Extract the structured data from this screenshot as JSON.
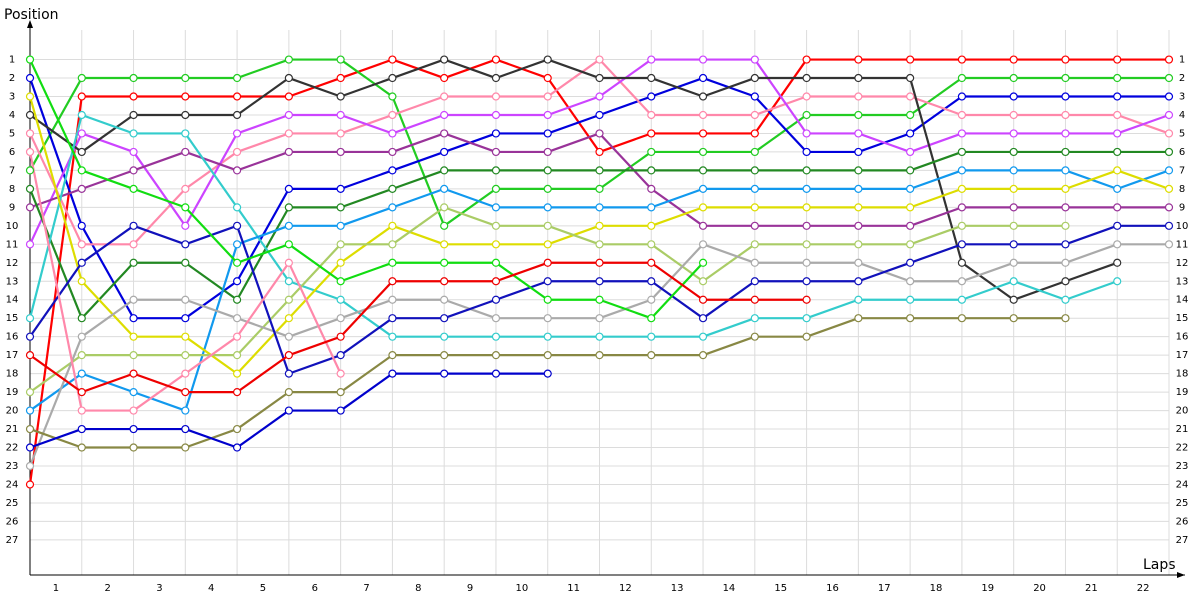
{
  "chart_data": {
    "type": "line",
    "y_label": "Position",
    "x_label": "Laps",
    "x": [
      0,
      1,
      2,
      3,
      4,
      5,
      6,
      7,
      8,
      9,
      10,
      11,
      12,
      13,
      14,
      15,
      16,
      17,
      18,
      19,
      20,
      21,
      22
    ],
    "xlim": [
      0,
      22
    ],
    "xticks": [
      {
        "value": 0.5,
        "label": "1"
      },
      {
        "value": 1.5,
        "label": "2"
      },
      {
        "value": 2.5,
        "label": "3"
      },
      {
        "value": 3.5,
        "label": "4"
      },
      {
        "value": 4.5,
        "label": "5"
      },
      {
        "value": 5.5,
        "label": "6"
      },
      {
        "value": 6.5,
        "label": "7"
      },
      {
        "value": 7.5,
        "label": "8"
      },
      {
        "value": 8.5,
        "label": "9"
      },
      {
        "value": 9.5,
        "label": "10"
      },
      {
        "value": 10.5,
        "label": "11"
      },
      {
        "value": 11.5,
        "label": "12"
      },
      {
        "value": 12.5,
        "label": "13"
      },
      {
        "value": 13.5,
        "label": "14"
      },
      {
        "value": 14.5,
        "label": "15"
      },
      {
        "value": 15.5,
        "label": "16"
      },
      {
        "value": 16.5,
        "label": "17"
      },
      {
        "value": 17.5,
        "label": "18"
      },
      {
        "value": 18.5,
        "label": "19"
      },
      {
        "value": 19.5,
        "label": "20"
      },
      {
        "value": 20.5,
        "label": "21"
      },
      {
        "value": 21.5,
        "label": "22"
      }
    ],
    "ylim": [
      28.9,
      -0.6
    ],
    "yticks": [
      1,
      2,
      3,
      4,
      5,
      6,
      7,
      8,
      9,
      10,
      11,
      12,
      13,
      14,
      15,
      16,
      17,
      18,
      19,
      20,
      21,
      22,
      23,
      24,
      25,
      26,
      27
    ],
    "grid": true,
    "series": [
      {
        "color": "#ff0000",
        "values": [
          24,
          3,
          3,
          3,
          3,
          3,
          2,
          1,
          2,
          1,
          2,
          6,
          5,
          5,
          5,
          1,
          1,
          1,
          1,
          1,
          1,
          1,
          1
        ]
      },
      {
        "color": "#22cc22",
        "values": [
          7,
          2,
          2,
          2,
          2,
          1,
          1,
          3,
          10,
          8,
          8,
          8,
          6,
          6,
          6,
          4,
          4,
          4,
          2,
          2,
          2,
          2,
          2
        ]
      },
      {
        "color": "#0000dd",
        "values": [
          2,
          10,
          15,
          15,
          13,
          8,
          8,
          7,
          6,
          5,
          5,
          4,
          3,
          2,
          3,
          6,
          6,
          5,
          3,
          3,
          3,
          3,
          3
        ]
      },
      {
        "color": "#ff88aa",
        "values": [
          5,
          11,
          11,
          8,
          6,
          5,
          5,
          4,
          3,
          3,
          3,
          1,
          4,
          4,
          4,
          3,
          3,
          3,
          4,
          4,
          4,
          4,
          5
        ]
      },
      {
        "color": "#cc44ff",
        "values": [
          11,
          5,
          6,
          10,
          5,
          4,
          4,
          5,
          4,
          4,
          4,
          3,
          1,
          1,
          1,
          5,
          5,
          6,
          5,
          5,
          5,
          5,
          4
        ]
      },
      {
        "color": "#333333",
        "values": [
          4,
          6,
          4,
          4,
          4,
          2,
          3,
          2,
          1,
          2,
          1,
          2,
          2,
          3,
          2,
          2,
          2,
          2,
          12,
          14,
          13,
          12,
          null
        ]
      },
      {
        "color": "#993399",
        "values": [
          9,
          8,
          7,
          6,
          7,
          6,
          6,
          6,
          5,
          6,
          6,
          5,
          8,
          10,
          10,
          10,
          10,
          10,
          9,
          9,
          9,
          9,
          9
        ]
      },
      {
        "color": "#228822",
        "values": [
          8,
          15,
          12,
          12,
          14,
          9,
          9,
          8,
          7,
          7,
          7,
          7,
          7,
          7,
          7,
          7,
          7,
          7,
          6,
          6,
          6,
          6,
          6
        ]
      },
      {
        "color": "#33cccc",
        "values": [
          15,
          4,
          5,
          5,
          9,
          13,
          14,
          16,
          16,
          16,
          16,
          16,
          16,
          16,
          15,
          15,
          14,
          14,
          14,
          13,
          14,
          13,
          null
        ]
      },
      {
        "color": "#1199ee",
        "values": [
          20,
          18,
          19,
          20,
          11,
          10,
          10,
          9,
          8,
          9,
          9,
          9,
          9,
          8,
          8,
          8,
          8,
          8,
          7,
          7,
          7,
          8,
          7
        ]
      },
      {
        "color": "#dddd00",
        "values": [
          3,
          13,
          16,
          16,
          18,
          15,
          12,
          10,
          11,
          11,
          11,
          10,
          10,
          9,
          9,
          9,
          9,
          9,
          8,
          8,
          8,
          7,
          8
        ]
      },
      {
        "color": "#aacc66",
        "values": [
          19,
          17,
          17,
          17,
          17,
          14,
          11,
          11,
          9,
          10,
          10,
          11,
          11,
          13,
          11,
          11,
          11,
          11,
          10,
          10,
          10,
          null,
          null
        ]
      },
      {
        "color": "#aaaaaa",
        "values": [
          23,
          16,
          14,
          14,
          15,
          16,
          15,
          14,
          14,
          15,
          15,
          15,
          14,
          11,
          12,
          12,
          12,
          13,
          13,
          12,
          12,
          11,
          11
        ]
      },
      {
        "color": "#888844",
        "values": [
          21,
          22,
          22,
          22,
          21,
          19,
          19,
          17,
          17,
          17,
          17,
          17,
          17,
          17,
          16,
          16,
          15,
          15,
          15,
          15,
          15,
          null,
          null
        ]
      },
      {
        "color": "#1111bb",
        "values": [
          16,
          12,
          10,
          11,
          10,
          18,
          17,
          15,
          15,
          14,
          13,
          13,
          13,
          15,
          13,
          13,
          13,
          12,
          11,
          11,
          11,
          10,
          10
        ]
      },
      {
        "color": "#11dd11",
        "values": [
          1,
          7,
          8,
          9,
          12,
          11,
          13,
          12,
          12,
          12,
          14,
          14,
          15,
          12,
          null,
          null,
          null,
          null,
          null,
          null,
          null,
          null,
          null
        ]
      },
      {
        "color": "#ff88aa",
        "values": [
          6,
          20,
          20,
          18,
          16,
          12,
          18,
          null,
          null,
          null,
          null,
          null,
          null,
          null,
          null,
          null,
          null,
          null,
          null,
          null,
          null,
          null,
          null
        ]
      },
      {
        "color": "#ee0000",
        "values": [
          17,
          19,
          18,
          19,
          19,
          17,
          16,
          13,
          13,
          13,
          12,
          12,
          12,
          14,
          14,
          14,
          null,
          null,
          null,
          null,
          null,
          null,
          null
        ]
      },
      {
        "color": "#0000cc",
        "values": [
          22,
          21,
          21,
          21,
          22,
          20,
          20,
          18,
          18,
          18,
          18,
          null,
          null,
          null,
          null,
          null,
          null,
          null,
          null,
          null,
          null,
          null,
          null
        ]
      }
    ]
  }
}
